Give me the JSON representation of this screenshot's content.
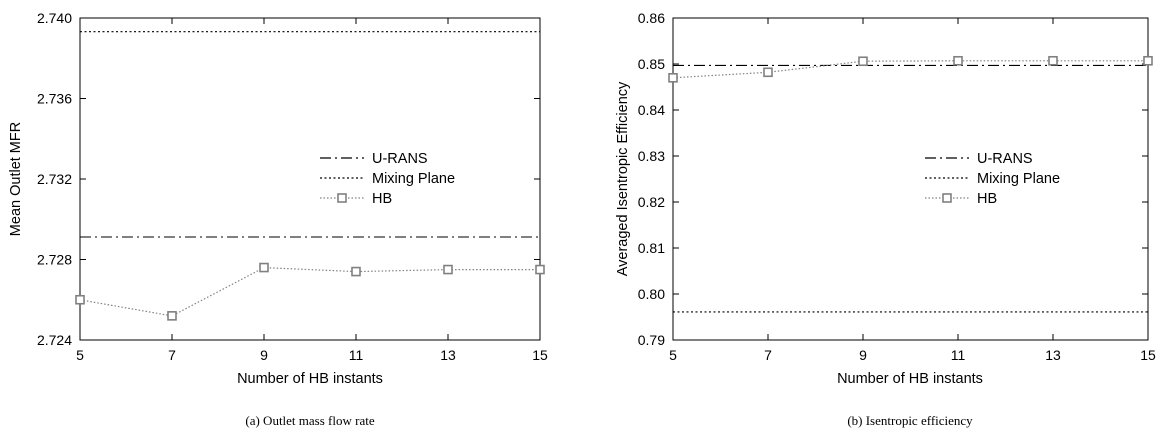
{
  "chart_data": [
    {
      "type": "line",
      "caption": "(a)  Outlet mass flow rate",
      "xlabel": "Number of HB instants",
      "ylabel": "Mean Outlet MFR",
      "xlim": [
        5,
        15
      ],
      "ylim": [
        2.724,
        2.74
      ],
      "x_ticks": [
        "5",
        "7",
        "9",
        "11",
        "13",
        "15"
      ],
      "y_ticks": [
        "2.724",
        "2.728",
        "2.732",
        "2.736",
        "2.740"
      ],
      "grid": false,
      "legend_position": "center",
      "series": [
        {
          "name": "U-RANS",
          "style": "dash-dot",
          "color": "#000000",
          "x": [
            5,
            15
          ],
          "y": [
            2.72912,
            2.72912
          ]
        },
        {
          "name": "Mixing Plane",
          "style": "dotted",
          "color": "#000000",
          "x": [
            5,
            15
          ],
          "y": [
            2.73932,
            2.73932
          ]
        },
        {
          "name": "HB",
          "style": "dotted-square",
          "color": "#808080",
          "x": [
            5,
            7,
            9,
            11,
            13,
            15
          ],
          "y": [
            2.726,
            2.7252,
            2.7276,
            2.7274,
            2.7275,
            2.7275
          ]
        }
      ]
    },
    {
      "type": "line",
      "caption": "(b)  Isentropic efficiency",
      "xlabel": "Number of HB instants",
      "ylabel": "Averaged Isentropic Efficiency",
      "xlim": [
        5,
        15
      ],
      "ylim": [
        0.79,
        0.86
      ],
      "x_ticks": [
        "5",
        "7",
        "9",
        "11",
        "13",
        "15"
      ],
      "y_ticks": [
        "0.79",
        "0.80",
        "0.81",
        "0.82",
        "0.83",
        "0.84",
        "0.85",
        "0.86"
      ],
      "grid": false,
      "legend_position": "center",
      "series": [
        {
          "name": "U-RANS",
          "style": "dash-dot",
          "color": "#000000",
          "x": [
            5,
            15
          ],
          "y": [
            0.8497,
            0.8497
          ]
        },
        {
          "name": "Mixing Plane",
          "style": "dotted",
          "color": "#000000",
          "x": [
            5,
            15
          ],
          "y": [
            0.7961,
            0.7961
          ]
        },
        {
          "name": "HB",
          "style": "dotted-square",
          "color": "#808080",
          "x": [
            5,
            7,
            9,
            11,
            13,
            15
          ],
          "y": [
            0.847,
            0.8482,
            0.8506,
            0.8507,
            0.8507,
            0.8507
          ]
        }
      ]
    }
  ]
}
